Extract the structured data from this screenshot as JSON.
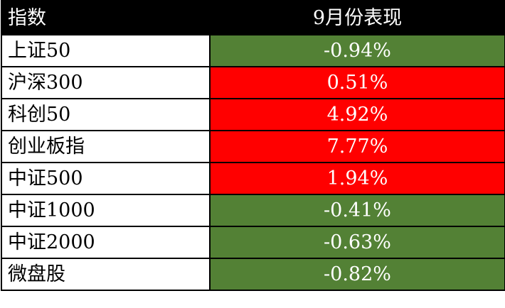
{
  "table": {
    "header": {
      "name": "指数",
      "value": "9月份表现"
    },
    "colors": {
      "header_bg": "#000000",
      "up": "#ff0000",
      "down": "#538135"
    },
    "rows": [
      {
        "name": "上证50",
        "value": "-0.94%",
        "trend": "down"
      },
      {
        "name": "沪深300",
        "value": "0.51%",
        "trend": "up"
      },
      {
        "name": "科创50",
        "value": "4.92%",
        "trend": "up"
      },
      {
        "name": "创业板指",
        "value": "7.77%",
        "trend": "up"
      },
      {
        "name": "中证500",
        "value": "1.94%",
        "trend": "up"
      },
      {
        "name": "中证1000",
        "value": "-0.41%",
        "trend": "down"
      },
      {
        "name": "中证2000",
        "value": "-0.63%",
        "trend": "down"
      },
      {
        "name": "微盘股",
        "value": "-0.82%",
        "trend": "down"
      }
    ]
  }
}
